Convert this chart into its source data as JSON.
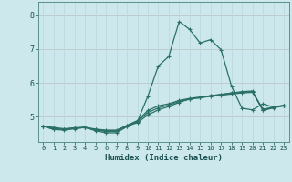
{
  "xlabel": "Humidex (Indice chaleur)",
  "bg_color": "#cce8ec",
  "grid_color_minor": "#b8d8dc",
  "grid_color_red": "#d4a0a0",
  "line_color": "#2a7068",
  "x_ticks": [
    0,
    1,
    2,
    3,
    4,
    5,
    6,
    7,
    8,
    9,
    10,
    11,
    12,
    13,
    14,
    15,
    16,
    17,
    18,
    19,
    20,
    21,
    22,
    23
  ],
  "y_ticks": [
    5,
    6,
    7,
    8
  ],
  "xlim": [
    -0.5,
    23.5
  ],
  "ylim": [
    4.25,
    8.4
  ],
  "series": [
    [
      4.72,
      4.62,
      4.62,
      4.65,
      4.68,
      4.58,
      4.52,
      4.52,
      4.7,
      4.85,
      5.6,
      6.5,
      6.78,
      7.82,
      7.58,
      7.18,
      7.28,
      6.98,
      5.9,
      5.25,
      5.2,
      5.38,
      5.28,
      5.32
    ],
    [
      4.72,
      4.62,
      4.6,
      4.64,
      4.68,
      4.6,
      4.56,
      4.56,
      4.72,
      4.82,
      5.05,
      5.2,
      5.3,
      5.42,
      5.52,
      5.56,
      5.62,
      5.65,
      5.7,
      5.74,
      5.76,
      5.18,
      5.26,
      5.32
    ],
    [
      4.72,
      4.65,
      4.62,
      4.66,
      4.68,
      4.62,
      4.58,
      4.58,
      4.74,
      4.88,
      5.18,
      5.32,
      5.38,
      5.48,
      5.54,
      5.58,
      5.62,
      5.66,
      5.7,
      5.72,
      5.74,
      5.22,
      5.28,
      5.34
    ],
    [
      4.72,
      4.68,
      4.64,
      4.67,
      4.68,
      4.63,
      4.6,
      4.6,
      4.73,
      4.86,
      5.12,
      5.26,
      5.34,
      5.45,
      5.52,
      5.56,
      5.6,
      5.63,
      5.67,
      5.7,
      5.72,
      5.2,
      5.27,
      5.33
    ]
  ]
}
